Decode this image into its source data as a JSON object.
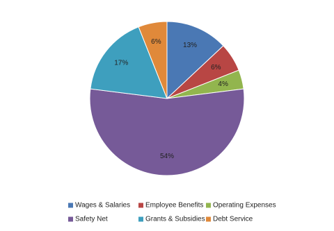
{
  "chart_data": {
    "type": "pie",
    "categories": [
      "Wages & Salaries",
      "Employee Benefits",
      "Operating Expenses",
      "Safety Net",
      "Grants & Subsidies",
      "Debt Service"
    ],
    "values": [
      13,
      6,
      4,
      54,
      17,
      6
    ],
    "value_labels": [
      "13%",
      "6%",
      "4%",
      "54%",
      "17%",
      "6%"
    ],
    "colors": [
      "#4a78b4",
      "#b84644",
      "#92b54e",
      "#765a98",
      "#3e9fbe",
      "#e0893a"
    ],
    "legend": "bottom"
  }
}
